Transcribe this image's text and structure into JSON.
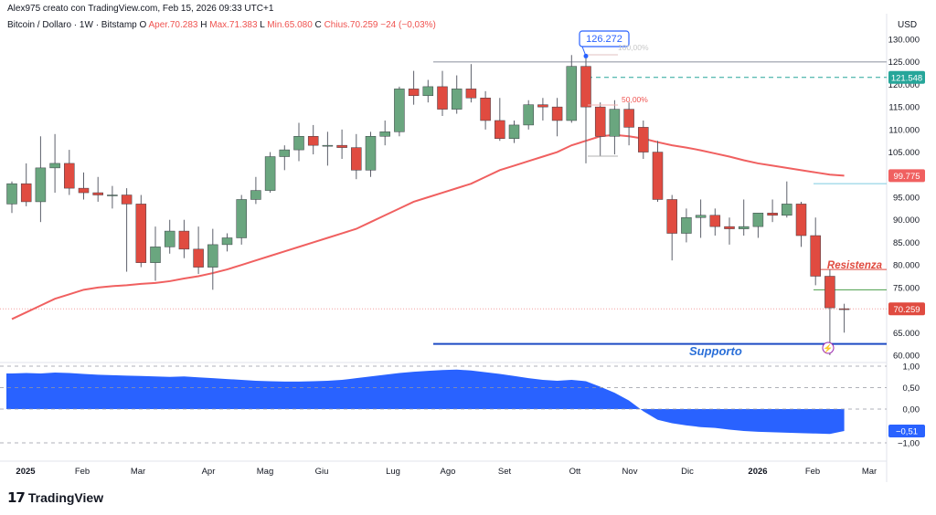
{
  "header": {
    "attribution": "Alex975 creato con TradingView.com, Feb 15, 2026 09:33 UTC+1",
    "symbol": "Bitcoin / Dollaro · 1W · Bitstamp",
    "open_label": "O",
    "open": "Aper.70.283",
    "high_label": "H",
    "high": "Max.71.383",
    "low_label": "L",
    "low": "Min.65.080",
    "close_label": "C",
    "close": "Chius.70.259",
    "change": "−24 (−0,03%)"
  },
  "axis": {
    "currency": "USD"
  },
  "brand": {
    "name": "TradingView"
  },
  "colors": {
    "up": "#6aa67f",
    "down": "#e04b40",
    "ma": "#f06060",
    "support": "#1e4bc4",
    "osc": "#2962ff",
    "callout": "#2962ff"
  },
  "chart_data": {
    "type": "candlestick",
    "x": [
      "2025",
      "Feb",
      "Mar",
      "Apr",
      "Mag",
      "Giu",
      "Lug",
      "Ago",
      "Set",
      "Ott",
      "Nov",
      "Dic",
      "2026",
      "Feb",
      "Mar"
    ],
    "y_ticks": [
      "130.000",
      "125.000",
      "120.000",
      "115.000",
      "110.000",
      "105.000",
      "100.000",
      "95.000",
      "90.000",
      "85.000",
      "80.000",
      "75.000",
      "70.000",
      "65.000",
      "60.000"
    ],
    "ylim": [
      60000,
      131000
    ],
    "candles": [
      [
        93500,
        98500,
        91500,
        98000
      ],
      [
        98000,
        102500,
        93000,
        94000
      ],
      [
        94000,
        108500,
        89500,
        101500
      ],
      [
        101500,
        109000,
        96000,
        102500
      ],
      [
        102500,
        105500,
        95500,
        97000
      ],
      [
        97000,
        100500,
        94500,
        96000
      ],
      [
        96000,
        99500,
        94000,
        95500
      ],
      [
        95500,
        97500,
        92500,
        95500
      ],
      [
        95500,
        97000,
        78500,
        93500
      ],
      [
        93500,
        95500,
        79500,
        80500
      ],
      [
        80500,
        88500,
        76500,
        84000
      ],
      [
        84000,
        90000,
        82500,
        87500
      ],
      [
        87500,
        90000,
        81500,
        83500
      ],
      [
        83500,
        88500,
        78000,
        79500
      ],
      [
        79500,
        88000,
        74500,
        84500
      ],
      [
        84500,
        87000,
        83000,
        86000
      ],
      [
        86000,
        95500,
        84500,
        94500
      ],
      [
        94500,
        99500,
        93500,
        96500
      ],
      [
        96500,
        105000,
        96000,
        104000
      ],
      [
        104000,
        106500,
        101000,
        105500
      ],
      [
        105500,
        111500,
        103000,
        108500
      ],
      [
        108500,
        111000,
        104500,
        106500
      ],
      [
        106500,
        109500,
        102000,
        106500
      ],
      [
        106500,
        110000,
        103500,
        106000
      ],
      [
        106000,
        109000,
        99000,
        101000
      ],
      [
        101000,
        109500,
        99500,
        108500
      ],
      [
        108500,
        112000,
        106500,
        109500
      ],
      [
        109500,
        119500,
        108500,
        119000
      ],
      [
        119000,
        123000,
        115500,
        117500
      ],
      [
        117500,
        121000,
        116000,
        119500
      ],
      [
        119500,
        123000,
        113000,
        114500
      ],
      [
        114500,
        122000,
        113500,
        119000
      ],
      [
        119000,
        124500,
        116000,
        117000
      ],
      [
        117000,
        118500,
        110000,
        112000
      ],
      [
        112000,
        117000,
        107500,
        108000
      ],
      [
        108000,
        112000,
        107000,
        111000
      ],
      [
        111000,
        116500,
        110000,
        115500
      ],
      [
        115500,
        117000,
        112000,
        115000
      ],
      [
        115000,
        117000,
        108500,
        112000
      ],
      [
        112000,
        126500,
        111500,
        124000
      ],
      [
        124000,
        126272,
        102500,
        115000
      ],
      [
        115000,
        116000,
        104000,
        108500
      ],
      [
        108500,
        116500,
        104500,
        114500
      ],
      [
        114500,
        116000,
        106500,
        110500
      ],
      [
        110500,
        112000,
        103500,
        105000
      ],
      [
        105000,
        107500,
        94000,
        94500
      ],
      [
        94500,
        95500,
        81000,
        87000
      ],
      [
        87000,
        92500,
        85000,
        90500
      ],
      [
        90500,
        94500,
        86000,
        91000
      ],
      [
        91000,
        92500,
        86500,
        88500
      ],
      [
        88500,
        90500,
        84500,
        88000
      ],
      [
        88000,
        94500,
        86500,
        88500
      ],
      [
        88500,
        91500,
        86000,
        91500
      ],
      [
        91500,
        94500,
        89500,
        91000
      ],
      [
        91000,
        98500,
        90500,
        93500
      ],
      [
        93500,
        94000,
        84000,
        86500
      ],
      [
        86500,
        90500,
        75500,
        77500
      ],
      [
        77500,
        79000,
        60000,
        70500
      ],
      [
        70300,
        71400,
        65000,
        70259
      ]
    ],
    "ma": [
      68000,
      69500,
      71000,
      72500,
      73500,
      74500,
      75000,
      75300,
      75500,
      75800,
      76000,
      76400,
      77000,
      77500,
      78200,
      79000,
      80000,
      81000,
      82000,
      83000,
      84000,
      85000,
      86000,
      87000,
      88000,
      89500,
      91000,
      92500,
      94000,
      95000,
      96000,
      97000,
      98000,
      99500,
      101000,
      102000,
      103000,
      104000,
      105000,
      106500,
      107500,
      108500,
      108800,
      108500,
      108000,
      107200,
      106500,
      106000,
      105400,
      104700,
      104000,
      103200,
      102500,
      102000,
      101500,
      101000,
      100500,
      100000,
      99775
    ],
    "horizontal_levels": [
      {
        "value": 125000,
        "color": "#b2b5be"
      },
      {
        "value": 121548,
        "color": "#26a69a",
        "dash": true
      },
      {
        "value": 98000,
        "color": "#7ecbe0"
      },
      {
        "value": 79000,
        "color": "#e04b40"
      },
      {
        "value": 74500,
        "color": "#4a9e4a"
      },
      {
        "value": 70259,
        "color": "#f4a0a0",
        "dash": true
      },
      {
        "value": 62500,
        "color": "#1e4bc4"
      }
    ],
    "price_labels": [
      {
        "text": "121.548",
        "value": 121548,
        "color": "#26a69a"
      },
      {
        "text": "99.775",
        "value": 99775,
        "color": "#f06060"
      },
      {
        "text": "70.259",
        "value": 70259,
        "color": "#e04b40"
      }
    ],
    "annotations": {
      "high_callout": "126.272",
      "fib_100": "100,00%",
      "fib_50": "50,00%",
      "resistance": "Resistenza",
      "support": "Supporto"
    },
    "oscillator": {
      "ticks": [
        "1,00",
        "0,50",
        "0,00",
        "−1,00"
      ],
      "ylim": [
        -1.1,
        1.1
      ],
      "last_label": "−0,51",
      "values": [
        0.83,
        0.84,
        0.83,
        0.85,
        0.84,
        0.82,
        0.8,
        0.79,
        0.78,
        0.77,
        0.76,
        0.75,
        0.76,
        0.74,
        0.72,
        0.7,
        0.68,
        0.66,
        0.65,
        0.64,
        0.64,
        0.65,
        0.66,
        0.68,
        0.72,
        0.76,
        0.8,
        0.84,
        0.87,
        0.89,
        0.91,
        0.92,
        0.9,
        0.86,
        0.82,
        0.77,
        0.72,
        0.68,
        0.66,
        0.68,
        0.65,
        0.52,
        0.38,
        0.2,
        -0.05,
        -0.25,
        -0.33,
        -0.38,
        -0.42,
        -0.44,
        -0.48,
        -0.51,
        -0.53,
        -0.54,
        -0.55,
        -0.56,
        -0.57,
        -0.58,
        -0.51
      ]
    }
  }
}
